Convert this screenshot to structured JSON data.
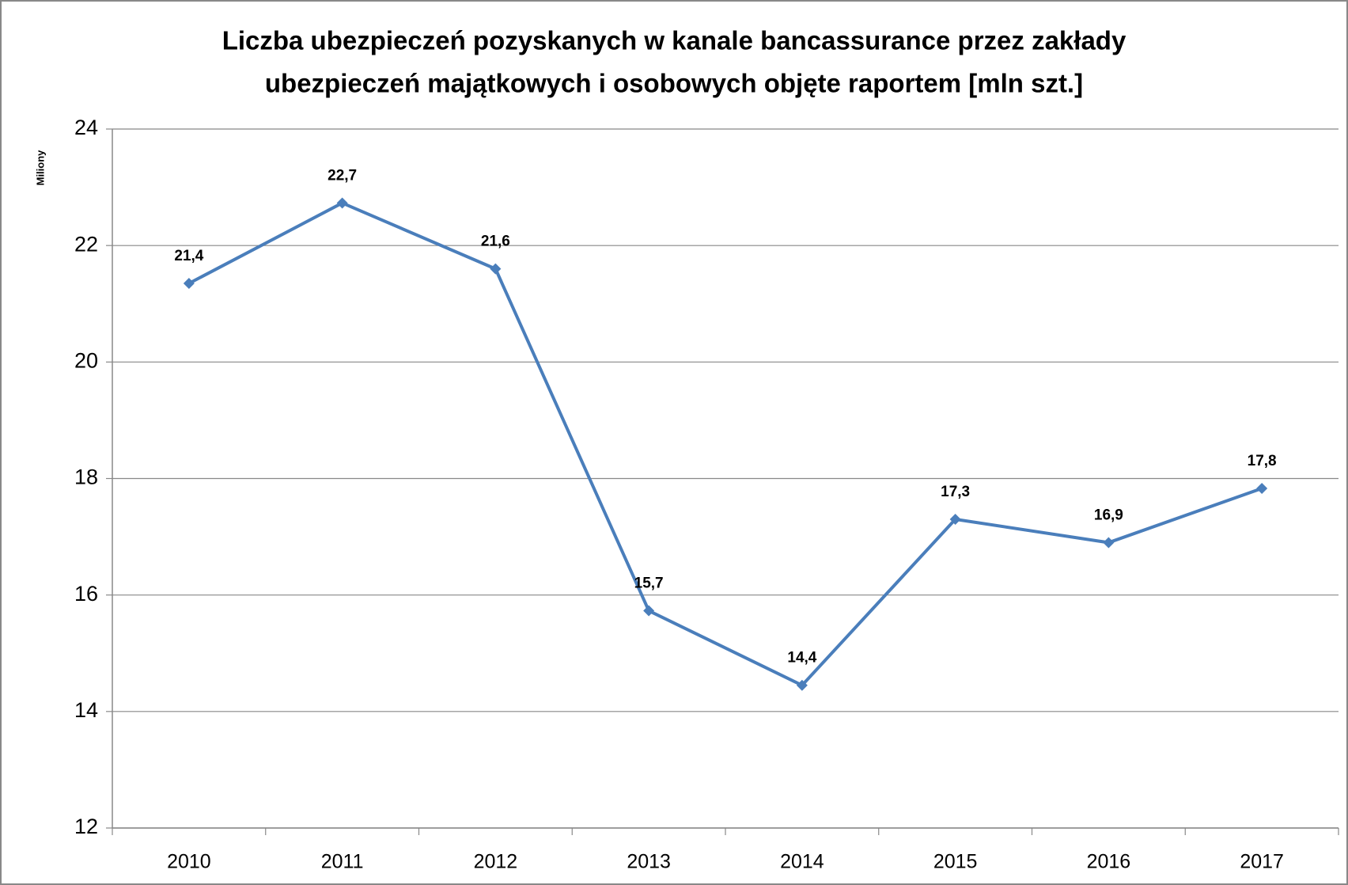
{
  "chart_data": {
    "type": "line",
    "title": [
      "Liczba ubezpieczeń  pozyskanych w kanale bancassurance przez zakłady",
      "ubezpieczeń majątkowych i osobowych objęte raportem [mln szt.]"
    ],
    "y_label": "Miliony",
    "categories": [
      "2010",
      "2011",
      "2012",
      "2013",
      "2014",
      "2015",
      "2016",
      "2017"
    ],
    "series": [
      {
        "name": "Liczba ubezpieczeń",
        "color": "#4a7ebb",
        "values": [
          21.35,
          22.73,
          21.6,
          15.73,
          14.45,
          17.3,
          16.9,
          17.83
        ],
        "value_labels": [
          "21,4",
          "22,7",
          "21,6",
          "15,7",
          "14,4",
          "17,3",
          "16,9",
          "17,8"
        ]
      }
    ],
    "ylim": [
      12,
      24
    ],
    "yticks": [
      12,
      14,
      16,
      18,
      20,
      22,
      24
    ],
    "grid": true
  }
}
